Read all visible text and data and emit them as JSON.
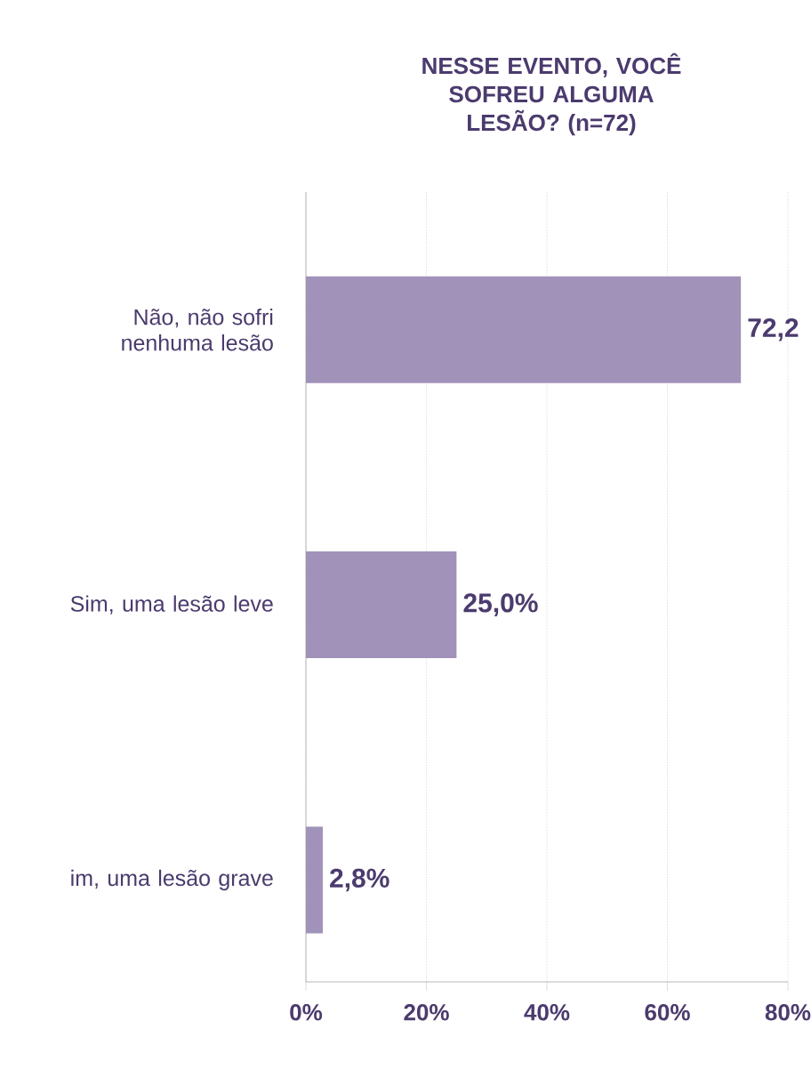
{
  "chart_data": {
    "type": "bar",
    "orientation": "horizontal",
    "title": "NESSE EVENTO, VOCÊ SOFREU ALGUMA LESÃO?  (n=72)",
    "categories": [
      "Não, não sofri nenhuma lesão",
      "Sim, uma lesão leve",
      "im, uma lesão grave"
    ],
    "values": [
      72.2,
      25.0,
      2.8
    ],
    "value_labels": [
      "72,2",
      "25,0%",
      "2,8%"
    ],
    "color": "#a192b9",
    "xlim": [
      0,
      80
    ],
    "xticks": [
      {
        "value": 0,
        "label": "0%"
      },
      {
        "value": 20,
        "label": "20%"
      },
      {
        "value": 40,
        "label": "40%"
      },
      {
        "value": 60,
        "label": "60%"
      },
      {
        "value": 80,
        "label": "80%"
      }
    ],
    "grid": "x"
  }
}
